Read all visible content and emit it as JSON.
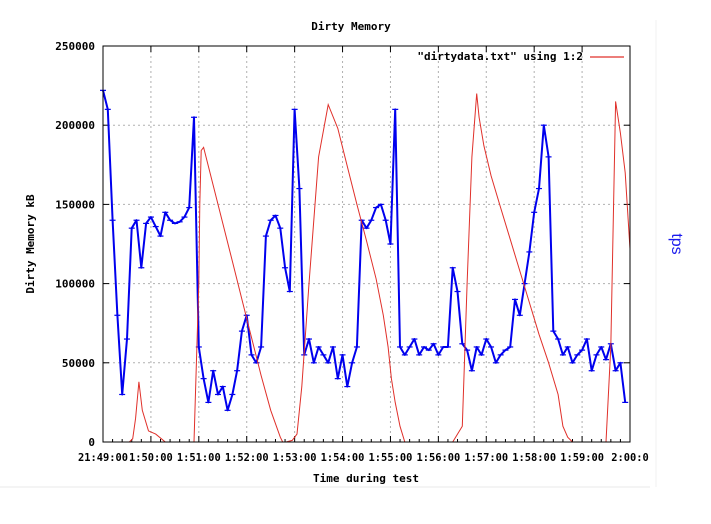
{
  "chart_data": {
    "type": "line",
    "title": "Dirty Memory",
    "xlabel": "Time during test",
    "ylabel": "Dirty Memory kB",
    "y2label": "tps",
    "ylim": [
      0,
      250000
    ],
    "yticks": [
      {
        "value": 0,
        "label": "0"
      },
      {
        "value": 50000,
        "label": "50000"
      },
      {
        "value": 100000,
        "label": "100000"
      },
      {
        "value": 150000,
        "label": "150000"
      },
      {
        "value": 200000,
        "label": "200000"
      },
      {
        "value": 250000,
        "label": "250000"
      }
    ],
    "xlim": [
      0,
      11
    ],
    "xtick_labels": [
      "21:49:00",
      "1:50:00",
      "1:51:00",
      "1:52:00",
      "1:53:00",
      "1:54:00",
      "1:55:00",
      "1:56:00",
      "1:57:00",
      "1:58:00",
      "1:59:00",
      "2:00:0"
    ],
    "grid": true,
    "legend": {
      "position": "top-right",
      "entries": [
        {
          "name": "\"dirtydata.txt\" using 1:2",
          "color": "#e0302a"
        }
      ]
    },
    "series": [
      {
        "name": "\"dirtydata.txt\" using 1:2",
        "color": "#e0302a",
        "x": [
          0.55,
          0.62,
          0.68,
          0.75,
          0.82,
          0.95,
          1.1,
          1.3,
          1.45,
          1.62,
          1.75,
          1.9,
          2.0,
          2.02,
          2.05,
          2.1,
          2.3,
          2.5,
          2.7,
          2.9,
          3.1,
          3.3,
          3.5,
          3.7,
          3.75,
          3.82,
          3.95,
          4.05,
          4.15,
          4.3,
          4.5,
          4.7,
          4.9,
          5.1,
          5.3,
          5.5,
          5.7,
          5.85,
          5.95,
          6.02,
          6.1,
          6.2,
          6.3,
          6.5,
          6.7,
          6.9,
          7.1,
          7.3,
          7.5,
          7.6,
          7.7,
          7.8,
          7.85,
          7.95,
          8.1,
          8.3,
          8.5,
          8.7,
          8.9,
          9.1,
          9.3,
          9.5,
          9.6,
          9.7,
          9.8,
          9.95,
          10.1,
          10.3,
          10.5,
          10.6,
          10.7,
          10.8,
          10.9,
          11.0
        ],
        "values": [
          0,
          2000,
          15000,
          38000,
          20000,
          7000,
          5000,
          0,
          0,
          0,
          0,
          0,
          100000,
          150000,
          184000,
          186000,
          162000,
          138000,
          114000,
          90000,
          66000,
          42000,
          20000,
          3000,
          0,
          0,
          1000,
          5000,
          35000,
          100000,
          180000,
          213000,
          198000,
          174000,
          150000,
          127000,
          103000,
          80000,
          60000,
          40000,
          25000,
          10000,
          0,
          0,
          0,
          0,
          0,
          0,
          10000,
          100000,
          180000,
          220000,
          205000,
          187000,
          168000,
          148000,
          128000,
          108000,
          88000,
          68000,
          50000,
          30000,
          10000,
          3000,
          0,
          0,
          0,
          0,
          0,
          60000,
          215000,
          195000,
          170000,
          122000
        ]
      },
      {
        "name": "tps",
        "color": "#0000ee",
        "x": [
          0.0,
          0.1,
          0.2,
          0.3,
          0.4,
          0.5,
          0.6,
          0.7,
          0.8,
          0.9,
          1.0,
          1.1,
          1.2,
          1.3,
          1.4,
          1.5,
          1.6,
          1.7,
          1.8,
          1.9,
          2.0,
          2.1,
          2.2,
          2.3,
          2.4,
          2.5,
          2.6,
          2.7,
          2.8,
          2.9,
          3.0,
          3.1,
          3.2,
          3.3,
          3.4,
          3.5,
          3.6,
          3.7,
          3.8,
          3.9,
          4.0,
          4.1,
          4.2,
          4.3,
          4.4,
          4.5,
          4.6,
          4.7,
          4.8,
          4.9,
          5.0,
          5.1,
          5.2,
          5.3,
          5.4,
          5.5,
          5.6,
          5.7,
          5.8,
          5.9,
          6.0,
          6.1,
          6.2,
          6.3,
          6.4,
          6.5,
          6.6,
          6.7,
          6.8,
          6.9,
          7.0,
          7.1,
          7.2,
          7.3,
          7.4,
          7.5,
          7.6,
          7.7,
          7.8,
          7.9,
          8.0,
          8.1,
          8.2,
          8.3,
          8.4,
          8.5,
          8.6,
          8.7,
          8.8,
          8.9,
          9.0,
          9.1,
          9.2,
          9.3,
          9.4,
          9.5,
          9.6,
          9.7,
          9.8,
          9.9,
          10.0,
          10.1,
          10.2,
          10.3,
          10.4,
          10.5,
          10.6,
          10.7,
          10.8,
          10.9
        ],
        "values": [
          222000,
          210000,
          140000,
          80000,
          30000,
          65000,
          135000,
          140000,
          110000,
          138000,
          142000,
          136000,
          130000,
          145000,
          140000,
          138000,
          139000,
          142000,
          148000,
          205000,
          60000,
          40000,
          25000,
          45000,
          30000,
          35000,
          20000,
          30000,
          45000,
          70000,
          80000,
          55000,
          50000,
          60000,
          130000,
          140000,
          143000,
          135000,
          110000,
          95000,
          210000,
          160000,
          55000,
          65000,
          50000,
          60000,
          55000,
          50000,
          60000,
          40000,
          55000,
          35000,
          50000,
          60000,
          140000,
          135000,
          140000,
          148000,
          150000,
          140000,
          125000,
          210000,
          60000,
          55000,
          60000,
          65000,
          55000,
          60000,
          58000,
          62000,
          55000,
          60000,
          60000,
          110000,
          95000,
          62000,
          58000,
          45000,
          60000,
          55000,
          65000,
          60000,
          50000,
          55000,
          58000,
          60000,
          90000,
          80000,
          100000,
          120000,
          145000,
          160000,
          200000,
          180000,
          70000,
          65000,
          55000,
          60000,
          50000,
          55000,
          58000,
          65000,
          45000,
          55000,
          60000,
          52000,
          62000,
          45000,
          50000,
          25000
        ]
      }
    ]
  }
}
